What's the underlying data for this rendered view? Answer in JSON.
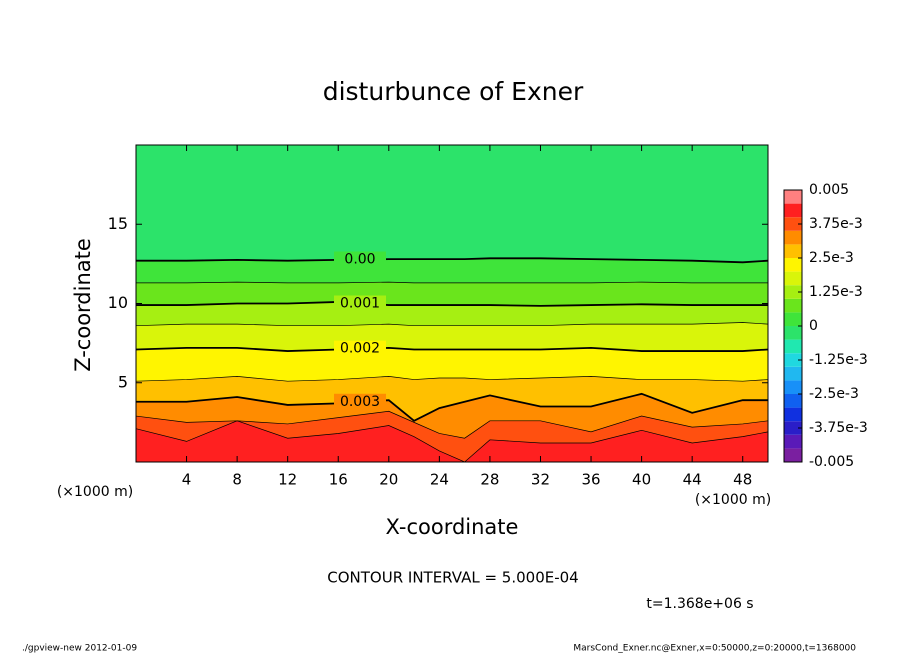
{
  "chart_data": {
    "type": "contour",
    "title": "disturbunce of Exner",
    "xlabel": "X-coordinate",
    "ylabel": "Z-coordinate",
    "x_unit": "(×1000 m)",
    "x_unit_right": "(×1000 m)",
    "xlim": [
      0,
      50
    ],
    "ylim": [
      0,
      20
    ],
    "xticks": [
      4,
      8,
      12,
      16,
      20,
      24,
      28,
      32,
      36,
      40,
      44,
      48
    ],
    "yticks": [
      5,
      10,
      15
    ],
    "x": [
      0,
      4,
      8,
      12,
      16,
      20,
      22,
      24,
      26,
      28,
      32,
      36,
      40,
      44,
      48,
      50
    ],
    "isolines": [
      {
        "level": 0,
        "label": "0.00",
        "z": [
          12.7,
          12.7,
          12.75,
          12.7,
          12.75,
          12.8,
          12.8,
          12.8,
          12.8,
          12.85,
          12.85,
          12.8,
          12.75,
          12.7,
          12.6,
          12.7
        ]
      },
      {
        "level": 0.0005,
        "z": [
          11.3,
          11.3,
          11.35,
          11.3,
          11.3,
          11.35,
          11.3,
          11.3,
          11.3,
          11.3,
          11.3,
          11.3,
          11.35,
          11.3,
          11.3,
          11.3
        ]
      },
      {
        "level": 0.001,
        "label": "0.001",
        "z": [
          9.9,
          9.9,
          10,
          10,
          10.1,
          9.9,
          9.9,
          9.9,
          9.9,
          9.9,
          9.85,
          9.9,
          9.95,
          9.9,
          9.9,
          9.9
        ]
      },
      {
        "level": 0.0015,
        "z": [
          8.6,
          8.7,
          8.7,
          8.6,
          8.6,
          8.7,
          8.6,
          8.6,
          8.6,
          8.6,
          8.6,
          8.7,
          8.7,
          8.7,
          8.8,
          8.7
        ]
      },
      {
        "level": 0.002,
        "label": "0.002",
        "z": [
          7.1,
          7.2,
          7.2,
          7,
          7.1,
          7.2,
          7.1,
          7.1,
          7.1,
          7.1,
          7.1,
          7.2,
          7,
          7,
          7,
          7.1
        ]
      },
      {
        "level": 0.0025,
        "z": [
          5.1,
          5.2,
          5.4,
          5.1,
          5.2,
          5.4,
          5.2,
          5.3,
          5.3,
          5.2,
          5.3,
          5.4,
          5.2,
          5.2,
          5.1,
          5.2
        ]
      },
      {
        "level": 0.003,
        "label": "0.003",
        "z": [
          3.8,
          3.8,
          4.1,
          3.6,
          3.7,
          3.9,
          2.6,
          3.4,
          3.8,
          4.2,
          3.5,
          3.5,
          4.3,
          3.1,
          3.9,
          3.9
        ]
      },
      {
        "level": 0.0035,
        "z": [
          2.9,
          2.5,
          2.6,
          2.4,
          2.8,
          3.2,
          2.5,
          1.8,
          1.5,
          2.6,
          2.6,
          1.9,
          2.9,
          2.2,
          2.4,
          2.6
        ]
      },
      {
        "level": 0.004,
        "z": [
          2.1,
          1.3,
          2.6,
          1.5,
          1.8,
          2.3,
          1.6,
          0.7,
          0,
          1.4,
          1.2,
          1.2,
          2,
          1.2,
          1.6,
          1.9
        ]
      }
    ],
    "levels": [
      -0.005,
      -0.0045,
      -0.004,
      -0.0035,
      -0.003,
      -0.0025,
      -0.002,
      -0.0015,
      -0.001,
      -0.0005,
      0,
      0.0005,
      0.001,
      0.0015,
      0.002,
      0.0025,
      0.003,
      0.0035,
      0.004,
      0.0045,
      0.005
    ],
    "colors": [
      "#7a1fa0",
      "#5a1ab8",
      "#2a1ec8",
      "#1030e0",
      "#1060f0",
      "#1890f8",
      "#20b8f0",
      "#20d8e0",
      "#20e8b0",
      "#2ce36a",
      "#3fe43a",
      "#6ae51c",
      "#a6ef12",
      "#d9f50a",
      "#fff500",
      "#ffc000",
      "#ff8c00",
      "#ff5010",
      "#ff2020",
      "#ff8080"
    ],
    "colorbar_ticks": [
      0.005,
      {
        "value": 0.00375,
        "label": "3.75e-3"
      },
      {
        "value": 0.0025,
        "label": "2.5e-3"
      },
      {
        "value": 0.00125,
        "label": "1.25e-3"
      },
      0,
      {
        "value": -0.00125,
        "label": "-1.25e-3"
      },
      {
        "value": -0.0025,
        "label": "-2.5e-3"
      },
      {
        "value": -0.00375,
        "label": "-3.75e-3"
      },
      -0.005
    ],
    "contour_interval": "CONTOUR INTERVAL = 5.000E-04",
    "time": "t=1.368e+06 s",
    "footer_left": "./gpview-new  2012-01-09",
    "footer_right": "MarsCond_Exner.nc@Exner,x=0:50000,z=0:20000,t=1368000"
  }
}
